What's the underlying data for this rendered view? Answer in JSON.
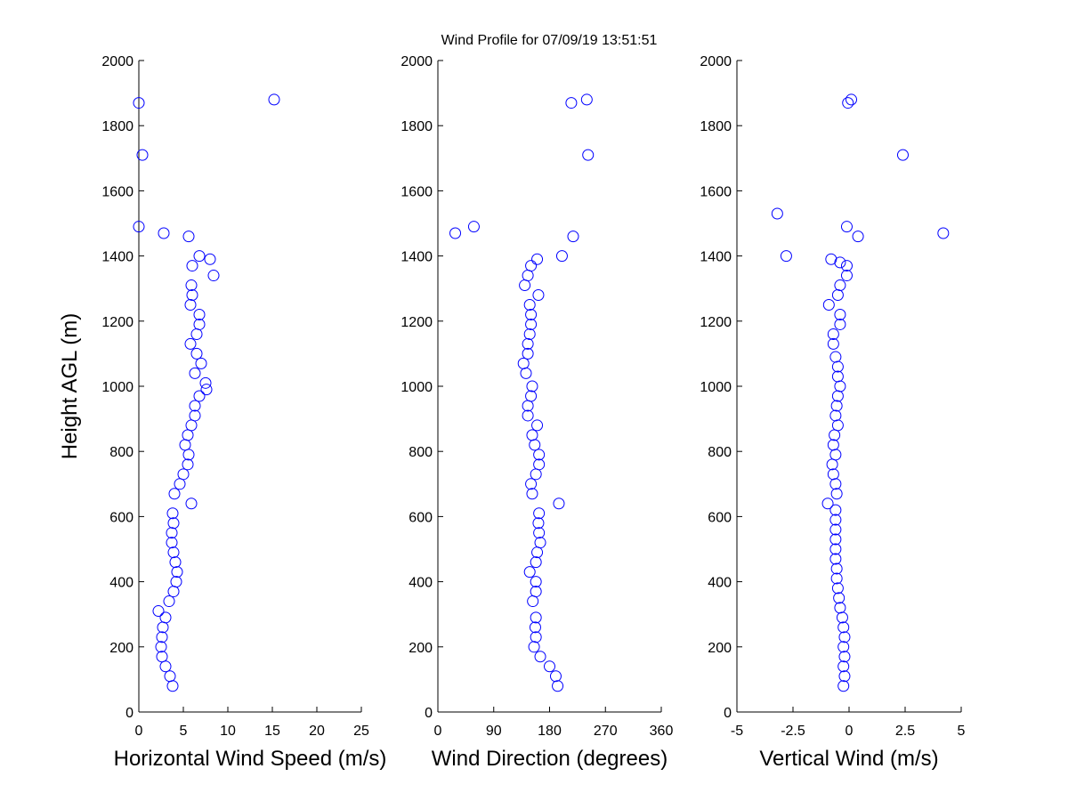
{
  "title": "Wind Profile for  07/09/19 13:51:51",
  "chart_data": [
    {
      "type": "scatter",
      "xlabel": "Horizontal Wind Speed (m/s)",
      "ylabel": "Height AGL (m)",
      "color": "#0000ff",
      "xlim": [
        0,
        25
      ],
      "xticks": [
        0,
        5,
        10,
        15,
        20,
        25
      ],
      "ylim": [
        0,
        2000
      ],
      "yticks": [
        0,
        200,
        400,
        600,
        800,
        1000,
        1200,
        1400,
        1600,
        1800,
        2000
      ],
      "x": [
        3.8,
        3.5,
        3.0,
        2.6,
        2.5,
        2.6,
        2.7,
        3.0,
        2.2,
        3.4,
        3.9,
        4.2,
        4.3,
        4.1,
        3.9,
        3.7,
        3.7,
        3.9,
        3.8,
        5.9,
        4.0,
        4.6,
        5.0,
        5.5,
        5.6,
        5.2,
        5.5,
        5.9,
        6.3,
        6.3,
        6.8,
        7.6,
        7.5,
        6.3,
        7.0,
        6.5,
        5.8,
        6.5,
        6.8,
        6.8,
        5.8,
        6.0,
        5.9,
        8.4,
        6.0,
        8.0,
        6.8,
        5.6,
        2.8,
        0.0,
        0.4,
        0.0,
        15.2
      ],
      "y": [
        80,
        110,
        140,
        170,
        200,
        230,
        260,
        290,
        310,
        340,
        370,
        400,
        430,
        460,
        490,
        520,
        550,
        580,
        610,
        640,
        670,
        700,
        730,
        760,
        790,
        820,
        850,
        880,
        910,
        940,
        970,
        990,
        1010,
        1040,
        1070,
        1100,
        1130,
        1160,
        1190,
        1220,
        1250,
        1280,
        1310,
        1340,
        1370,
        1390,
        1400,
        1460,
        1470,
        1490,
        1710,
        1870,
        1880
      ]
    },
    {
      "type": "scatter",
      "xlabel": "Wind Direction (degrees)",
      "color": "#0000ff",
      "xlim": [
        0,
        360
      ],
      "xticks": [
        0,
        90,
        180,
        270,
        360
      ],
      "ylim": [
        0,
        2000
      ],
      "yticks": [
        0,
        200,
        400,
        600,
        800,
        1000,
        1200,
        1400,
        1600,
        1800,
        2000
      ],
      "x": [
        193,
        190,
        180,
        165,
        155,
        158,
        157,
        158,
        153,
        158,
        158,
        148,
        158,
        160,
        165,
        163,
        162,
        163,
        195,
        152,
        150,
        158,
        163,
        163,
        156,
        152,
        160,
        145,
        145,
        150,
        152,
        142,
        138,
        145,
        145,
        148,
        150,
        150,
        148,
        162,
        140,
        145,
        150,
        160,
        200,
        218,
        28,
        58,
        242,
        215,
        240
      ],
      "y": [
        80,
        110,
        140,
        170,
        200,
        230,
        260,
        290,
        340,
        370,
        400,
        430,
        460,
        490,
        520,
        550,
        580,
        610,
        640,
        670,
        700,
        730,
        760,
        790,
        820,
        850,
        880,
        910,
        940,
        970,
        1000,
        1040,
        1070,
        1100,
        1130,
        1160,
        1190,
        1220,
        1250,
        1280,
        1310,
        1340,
        1370,
        1390,
        1400,
        1460,
        1470,
        1490,
        1710,
        1870,
        1880
      ]
    },
    {
      "type": "scatter",
      "xlabel": "Vertical Wind (m/s)",
      "color": "#0000ff",
      "xlim": [
        -5,
        5
      ],
      "xticks": [
        -5,
        -2.5,
        0,
        2.5,
        5
      ],
      "ylim": [
        0,
        2000
      ],
      "yticks": [
        0,
        200,
        400,
        600,
        800,
        1000,
        1200,
        1400,
        1600,
        1800,
        2000
      ],
      "x": [
        -0.25,
        -0.2,
        -0.25,
        -0.2,
        -0.25,
        -0.2,
        -0.25,
        -0.3,
        -0.4,
        -0.45,
        -0.5,
        -0.55,
        -0.55,
        -0.6,
        -0.6,
        -0.6,
        -0.6,
        -0.6,
        -0.6,
        -0.95,
        -0.55,
        -0.6,
        -0.7,
        -0.75,
        -0.6,
        -0.7,
        -0.65,
        -0.5,
        -0.6,
        -0.55,
        -0.5,
        -0.4,
        -0.5,
        -0.5,
        -0.6,
        -0.7,
        -0.7,
        -0.4,
        -0.4,
        -0.9,
        -0.5,
        -0.4,
        -0.1,
        -0.1,
        -0.4,
        -0.8,
        -2.8,
        0.4,
        4.2,
        -0.1,
        -3.2,
        2.4,
        -0.05,
        0.1
      ],
      "y": [
        80,
        110,
        140,
        170,
        200,
        230,
        260,
        290,
        320,
        350,
        380,
        410,
        440,
        470,
        500,
        530,
        560,
        590,
        620,
        640,
        670,
        700,
        730,
        760,
        790,
        820,
        850,
        880,
        910,
        940,
        970,
        1000,
        1030,
        1060,
        1090,
        1130,
        1160,
        1190,
        1220,
        1250,
        1280,
        1310,
        1340,
        1370,
        1380,
        1390,
        1400,
        1460,
        1470,
        1490,
        1530,
        1710,
        1870,
        1880
      ]
    }
  ]
}
